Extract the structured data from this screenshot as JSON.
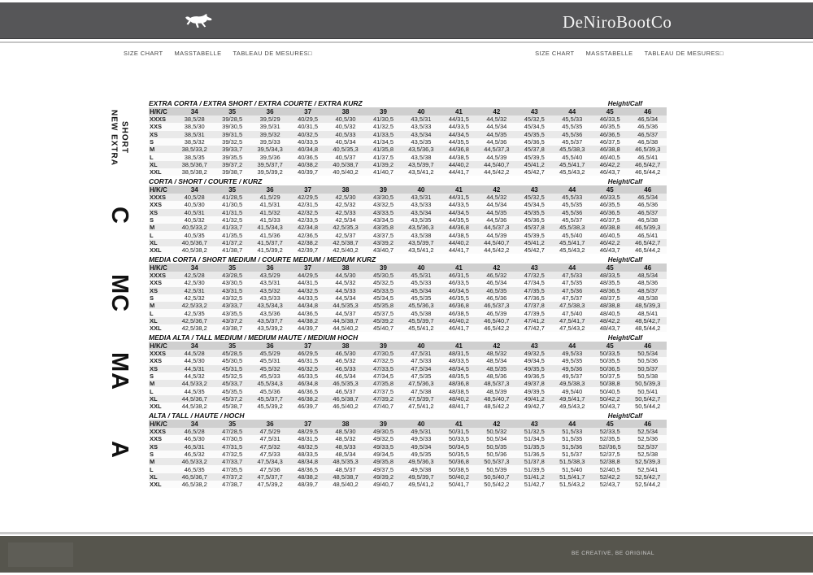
{
  "header": {
    "brand": "DeNiroBootCo",
    "logo": "galloping-horse-icon"
  },
  "nav": {
    "items": [
      {
        "id": "size-chart",
        "label": "SIZE CHART"
      },
      {
        "id": "masstabelle",
        "label": "MASSTABELLE"
      },
      {
        "id": "tableau-de-mesures",
        "label": "TABLEAU DE MESURES□"
      }
    ]
  },
  "table_columns": {
    "corner": "H/K/C",
    "sizes": [
      "34",
      "35",
      "36",
      "37",
      "38",
      "39",
      "40",
      "41",
      "42",
      "43",
      "44",
      "45",
      "46"
    ]
  },
  "height_calf_label": "Height/Calf",
  "tables": [
    {
      "id": "new-extra-short",
      "side_label": "NEW EXTRA\nSHORT",
      "side_style": "words",
      "title": "EXTRA CORTA / EXTRA SHORT / EXTRA COURTE / EXTRA KURZ",
      "rows": [
        {
          "label": "XXXS",
          "values": [
            "38,5/28",
            "39/28,5",
            "39,5/29",
            "40/29,5",
            "40,5/30",
            "41/30,5",
            "43,5/31",
            "44/31,5",
            "44,5/32",
            "45/32,5",
            "45,5/33",
            "46/33,5",
            "46,5/34"
          ]
        },
        {
          "label": "XXS",
          "values": [
            "38,5/30",
            "39/30,5",
            "39,5/31",
            "40/31,5",
            "40,5/32",
            "41/32,5",
            "43,5/33",
            "44/33,5",
            "44,5/34",
            "45/34,5",
            "45,5/35",
            "46/35,5",
            "46,5/36"
          ]
        },
        {
          "label": "XS",
          "values": [
            "38,5/31",
            "39/31,5",
            "39,5/32",
            "40/32,5",
            "40,5/33",
            "41/33,5",
            "43,5/34",
            "44/34,5",
            "44,5/35",
            "45/35,5",
            "45,5/36",
            "46/36,5",
            "46,5/37"
          ]
        },
        {
          "label": "S",
          "values": [
            "38,5/32",
            "39/32,5",
            "39,5/33",
            "40/33,5",
            "40,5/34",
            "41/34,5",
            "43,5/35",
            "44/35,5",
            "44,5/36",
            "45/36,5",
            "45,5/37",
            "46/37,5",
            "46,5/38"
          ]
        },
        {
          "label": "M",
          "values": [
            "38,5/33,2",
            "39/33,7",
            "39,5/34,3",
            "40/34,8",
            "40,5/35,3",
            "41/35,8",
            "43,5/36,3",
            "44/36,8",
            "44,5/37,3",
            "45/37,8",
            "45,5/38,3",
            "46/38,8",
            "46,5/39,3"
          ]
        },
        {
          "label": "L",
          "values": [
            "38,5/35",
            "39/35,5",
            "39,5/36",
            "40/36,5",
            "40,5/37",
            "41/37,5",
            "43,5/38",
            "44/38,5",
            "44,5/39",
            "45/39,5",
            "45,5/40",
            "46/40,5",
            "46,5/41"
          ]
        },
        {
          "label": "XL",
          "values": [
            "38,5/36,7",
            "39/37,2",
            "39,5/37,7",
            "40/38,2",
            "40,5/38,7",
            "41/39,2",
            "43,5/39,7",
            "44/40,2",
            "44,5/40,7",
            "45/41,2",
            "45,5/41,7",
            "46/42,2",
            "46,5/42,7"
          ]
        },
        {
          "label": "XXL",
          "values": [
            "38,5/38,2",
            "39/38,7",
            "39,5/39,2",
            "40/39,7",
            "40,5/40,2",
            "41/40,7",
            "43,5/41,2",
            "44/41,7",
            "44,5/42,2",
            "45/42,7",
            "45,5/43,2",
            "46/43,7",
            "46,5/44,2"
          ]
        }
      ]
    },
    {
      "id": "short",
      "side_label": "C",
      "side_style": "letter",
      "title": "CORTA / SHORT / COURTE / KURZ",
      "rows": [
        {
          "label": "XXXS",
          "values": [
            "40,5/28",
            "41/28,5",
            "41,5/29",
            "42/29,5",
            "42,5/30",
            "43/30,5",
            "43,5/31",
            "44/31,5",
            "44,5/32",
            "45/32,5",
            "45,5/33",
            "46/33,5",
            "46,5/34"
          ]
        },
        {
          "label": "XXS",
          "values": [
            "40,5/30",
            "41/30,5",
            "41,5/31",
            "42/31,5",
            "42,5/32",
            "43/32,5",
            "43,5/33",
            "44/33,5",
            "44,5/34",
            "45/34,5",
            "45,5/35",
            "46/35,5",
            "46,5/36"
          ]
        },
        {
          "label": "XS",
          "values": [
            "40,5/31",
            "41/31,5",
            "41,5/32",
            "42/32,5",
            "42,5/33",
            "43/33,5",
            "43,5/34",
            "44/34,5",
            "44,5/35",
            "45/35,5",
            "45,5/36",
            "46/36,5",
            "46,5/37"
          ]
        },
        {
          "label": "S",
          "values": [
            "40,5/32",
            "41/32,5",
            "41,5/33",
            "42/33,5",
            "42,5/34",
            "43/34,5",
            "43,5/35",
            "44/35,5",
            "44,5/36",
            "45/36,5",
            "45,5/37",
            "46/37,5",
            "46,5/38"
          ]
        },
        {
          "label": "M",
          "values": [
            "40,5/33,2",
            "41/33,7",
            "41,5/34,3",
            "42/34,8",
            "42,5/35,3",
            "43/35,8",
            "43,5/36,3",
            "44/36,8",
            "44,5/37,3",
            "45/37,8",
            "45,5/38,3",
            "46/38,8",
            "46,5/39,3"
          ]
        },
        {
          "label": "L",
          "values": [
            "40,5/35",
            "41/35,5",
            "41,5/36",
            "42/36,5",
            "42,5/37",
            "43/37,5",
            "43,5/38",
            "44/38,5",
            "44,5/39",
            "45/39,5",
            "45,5/40",
            "46/40,5",
            "46,5/41"
          ]
        },
        {
          "label": "XL",
          "values": [
            "40,5/36,7",
            "41/37,2",
            "41,5/37,7",
            "42/38,2",
            "42,5/38,7",
            "43/39,2",
            "43,5/39,7",
            "44/40,2",
            "44,5/40,7",
            "45/41,2",
            "45,5/41,7",
            "46/42,2",
            "46,5/42,7"
          ]
        },
        {
          "label": "XXL",
          "values": [
            "40,5/38,2",
            "41/38,7",
            "41,5/39,2",
            "42/39,7",
            "42,5/40,2",
            "43/40,7",
            "43,5/41,2",
            "44/41,7",
            "44,5/42,2",
            "45/42,7",
            "45,5/43,2",
            "46/43,7",
            "46,5/44,2"
          ]
        }
      ]
    },
    {
      "id": "medium-short",
      "side_label": "MC",
      "side_style": "letter",
      "title": "MEDIA CORTA / SHORT MEDIUM / COURTE MEDIUM / MEDIUM KURZ",
      "rows": [
        {
          "label": "XXXS",
          "values": [
            "42,5/28",
            "43/28,5",
            "43,5/29",
            "44/29,5",
            "44,5/30",
            "45/30,5",
            "45,5/31",
            "46/31,5",
            "46,5/32",
            "47/32,5",
            "47,5/33",
            "48/33,5",
            "48,5/34"
          ]
        },
        {
          "label": "XXS",
          "values": [
            "42,5/30",
            "43/30,5",
            "43,5/31",
            "44/31,5",
            "44,5/32",
            "45/32,5",
            "45,5/33",
            "46/33,5",
            "46,5/34",
            "47/34,5",
            "47,5/35",
            "48/35,5",
            "48,5/36"
          ]
        },
        {
          "label": "XS",
          "values": [
            "42,5/31",
            "43/31,5",
            "43,5/32",
            "44/32,5",
            "44,5/33",
            "45/33,5",
            "45,5/34",
            "46/34,5",
            "46,5/35",
            "47/35,5",
            "47,5/36",
            "48/36,5",
            "48,5/37"
          ]
        },
        {
          "label": "S",
          "values": [
            "42,5/32",
            "43/32,5",
            "43,5/33",
            "44/33,5",
            "44,5/34",
            "45/34,5",
            "45,5/35",
            "46/35,5",
            "46,5/36",
            "47/36,5",
            "47,5/37",
            "48/37,5",
            "48,5/38"
          ]
        },
        {
          "label": "M",
          "values": [
            "42,5/33,2",
            "43/33,7",
            "43,5/34,3",
            "44/34,8",
            "44,5/35,3",
            "45/35,8",
            "45,5/36,3",
            "46/36,8",
            "46,5/37,3",
            "47/37,8",
            "47,5/38,3",
            "48/38,8",
            "48,5/39,3"
          ]
        },
        {
          "label": "L",
          "values": [
            "42,5/35",
            "43/35,5",
            "43,5/36",
            "44/36,5",
            "44,5/37",
            "45/37,5",
            "45,5/38",
            "46/38,5",
            "46,5/39",
            "47/39,5",
            "47,5/40",
            "48/40,5",
            "48,5/41"
          ]
        },
        {
          "label": "XL",
          "values": [
            "42,5/36,7",
            "43/37,2",
            "43,5/37,7",
            "44/38,2",
            "44,5/38,7",
            "45/39,2",
            "45,5/39,7",
            "46/40,2",
            "46,5/40,7",
            "47/41,2",
            "47,5/41,7",
            "48/42,2",
            "48,5/42,7"
          ]
        },
        {
          "label": "XXL",
          "values": [
            "42,5/38,2",
            "43/38,7",
            "43,5/39,2",
            "44/39,7",
            "44,5/40,2",
            "45/40,7",
            "45,5/41,2",
            "46/41,7",
            "46,5/42,2",
            "47/42,7",
            "47,5/43,2",
            "48/43,7",
            "48,5/44,2"
          ]
        }
      ]
    },
    {
      "id": "medium-tall",
      "side_label": "MA",
      "side_style": "letter",
      "title": "MEDIA ALTA / TALL MEDIUM / MEDIUM HAUTE / MEDIUM HOCH",
      "rows": [
        {
          "label": "XXXS",
          "values": [
            "44,5/28",
            "45/28,5",
            "45,5/29",
            "46/29,5",
            "46,5/30",
            "47/30,5",
            "47,5/31",
            "48/31,5",
            "48,5/32",
            "49/32,5",
            "49,5/33",
            "50/33,5",
            "50,5/34"
          ]
        },
        {
          "label": "XXS",
          "values": [
            "44,5/30",
            "45/30,5",
            "45,5/31",
            "46/31,5",
            "46,5/32",
            "47/32,5",
            "47,5/33",
            "48/33,5",
            "48,5/34",
            "49/34,5",
            "49,5/35",
            "50/35,5",
            "50,5/36"
          ]
        },
        {
          "label": "XS",
          "values": [
            "44,5/31",
            "45/31,5",
            "45,5/32",
            "46/32,5",
            "46,5/33",
            "47/33,5",
            "47,5/34",
            "48/34,5",
            "48,5/35",
            "49/35,5",
            "49,5/36",
            "50/36,5",
            "50,5/37"
          ]
        },
        {
          "label": "S",
          "values": [
            "44,5/32",
            "45/32,5",
            "45,5/33",
            "46/33,5",
            "46,5/34",
            "47/34,5",
            "47,5/35",
            "48/35,5",
            "48,5/36",
            "49/36,5",
            "49,5/37",
            "50/37,5",
            "50,5/38"
          ]
        },
        {
          "label": "M",
          "values": [
            "44,5/33,2",
            "45/33,7",
            "45,5/34,3",
            "46/34,8",
            "46,5/35,3",
            "47/35,8",
            "47,5/36,3",
            "48/36,8",
            "48,5/37,3",
            "49/37,8",
            "49,5/38,3",
            "50/38,8",
            "50,5/39,3"
          ]
        },
        {
          "label": "L",
          "values": [
            "44,5/35",
            "45/35,5",
            "45,5/36",
            "46/36,5",
            "46,5/37",
            "47/37,5",
            "47,5/38",
            "48/38,5",
            "48,5/39",
            "49/39,5",
            "49,5/40",
            "50/40,5",
            "50,5/41"
          ]
        },
        {
          "label": "XL",
          "values": [
            "44,5/36,7",
            "45/37,2",
            "45,5/37,7",
            "46/38,2",
            "46,5/38,7",
            "47/39,2",
            "47,5/39,7",
            "48/40,2",
            "48,5/40,7",
            "49/41,2",
            "49,5/41,7",
            "50/42,2",
            "50,5/42,7"
          ]
        },
        {
          "label": "XXL",
          "values": [
            "44,5/38,2",
            "45/38,7",
            "45,5/39,2",
            "46/39,7",
            "46,5/40,2",
            "47/40,7",
            "47,5/41,2",
            "48/41,7",
            "48,5/42,2",
            "49/42,7",
            "49,5/43,2",
            "50/43,7",
            "50,5/44,2"
          ]
        }
      ]
    },
    {
      "id": "tall",
      "side_label": "A",
      "side_style": "letter",
      "title": "ALTA / TALL / HAUTE / HOCH",
      "rows": [
        {
          "label": "XXXS",
          "values": [
            "46,5/28",
            "47/28,5",
            "47,5/29",
            "48/29,5",
            "48,5/30",
            "49/30,5",
            "49,5/31",
            "50/31,5",
            "50,5/32",
            "51/32,5",
            "51,5/33",
            "52/33,5",
            "52,5/34"
          ]
        },
        {
          "label": "XXS",
          "values": [
            "46,5/30",
            "47/30,5",
            "47,5/31",
            "48/31,5",
            "48,5/32",
            "49/32,5",
            "49,5/33",
            "50/33,5",
            "50,5/34",
            "51/34,5",
            "51,5/35",
            "52/35,5",
            "52,5/36"
          ]
        },
        {
          "label": "XS",
          "values": [
            "46,5/31",
            "47/31,5",
            "47,5/32",
            "48/32,5",
            "48,5/33",
            "49/33,5",
            "49,5/34",
            "50/34,5",
            "50,5/35",
            "51/35,5",
            "51,5/36",
            "52//36,5",
            "52,5/37"
          ]
        },
        {
          "label": "S",
          "values": [
            "46,5/32",
            "47/32,5",
            "47,5/33",
            "48/33,5",
            "48,5/34",
            "49/34,5",
            "49,5/35",
            "50/35,5",
            "50,5/36",
            "51/36,5",
            "51,5/37",
            "52/37,5",
            "52,5/38"
          ]
        },
        {
          "label": "M",
          "values": [
            "46,5/33,2",
            "47/33,7",
            "47,5/34,3",
            "48/34,8",
            "48,5/35,3",
            "49/35,8",
            "49,5/36,3",
            "50/36,8",
            "50,5/37,3",
            "51/37,8",
            "51,5/38,3",
            "52/38,8",
            "52,5/39,3"
          ]
        },
        {
          "label": "L",
          "values": [
            "46,5/35",
            "47/35,5",
            "47,5/36",
            "48/36,5",
            "48,5/37",
            "49/37,5",
            "49,5/38",
            "50/38,5",
            "50,5/39",
            "51/39,5",
            "51,5/40",
            "52/40,5",
            "52,5/41"
          ]
        },
        {
          "label": "XL",
          "values": [
            "46,5/36,7",
            "47/37,2",
            "47,5/37,7",
            "48/38,2",
            "48,5/38,7",
            "49/39,2",
            "49,5/39,7",
            "50/40,2",
            "50,5/40,7",
            "51/41,2",
            "51,5/41,7",
            "52/42,2",
            "52,5/42,7"
          ]
        },
        {
          "label": "XXL",
          "values": [
            "46,5/38,2",
            "47/38,7",
            "47,5/39,2",
            "48/39,7",
            "48,5/40,2",
            "49/40,7",
            "49,5/41,2",
            "50/41,7",
            "50,5/42,2",
            "51/42,7",
            "51,5/43,2",
            "52/43,7",
            "52,5/44,2"
          ]
        }
      ]
    }
  ],
  "footer": {
    "tagline": "BE CREATIVE, BE ORIGINAL"
  }
}
